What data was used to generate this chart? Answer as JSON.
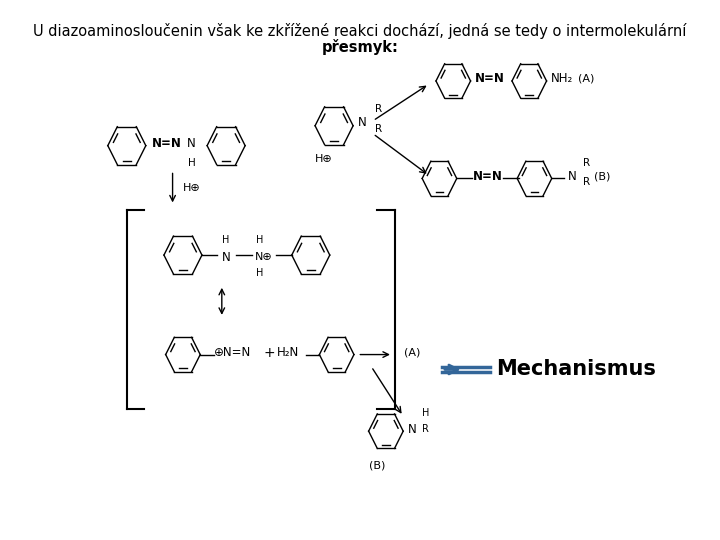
{
  "title_line1": "U diazoaminosloučenin však ke zkřížené reakci dochází, jedná se tedy o intermolekulární",
  "title_line2": "přesmyk:",
  "bg_color": "#ffffff",
  "text_color": "#000000",
  "blue_color": "#336699",
  "mechanismus_text": "Mechanismus",
  "title_fontsize": 10.5,
  "mech_fontsize": 15
}
